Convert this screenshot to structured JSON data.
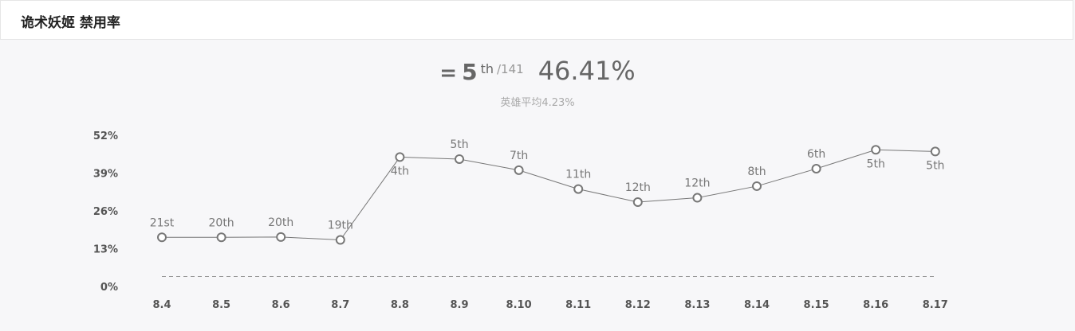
{
  "header": {
    "title": "诡术妖姬 禁用率"
  },
  "summary": {
    "prefix": "=",
    "rank": "5",
    "rank_suffix": "th",
    "rank_total": "/141",
    "rate": "46.41%",
    "average_label": "英雄平均4.23%"
  },
  "chart_data": {
    "type": "line",
    "categories": [
      "8.4",
      "8.5",
      "8.6",
      "8.7",
      "8.8",
      "8.9",
      "8.10",
      "8.11",
      "8.12",
      "8.13",
      "8.14",
      "8.15",
      "8.16",
      "8.17"
    ],
    "series": [
      {
        "values": [
          16.9,
          16.9,
          17.0,
          16.0,
          44.5,
          43.8,
          40.0,
          33.5,
          29.0,
          30.5,
          34.5,
          40.5,
          47.0,
          46.41
        ],
        "labels": [
          "21st",
          "20th",
          "20th",
          "19th",
          "4th",
          "5th",
          "7th",
          "11th",
          "12th",
          "12th",
          "8th",
          "6th",
          "5th",
          "5th"
        ],
        "label_positions": [
          "above",
          "above",
          "above",
          "above",
          "below",
          "above",
          "above",
          "above",
          "above",
          "above",
          "above",
          "above",
          "below",
          "below"
        ]
      }
    ],
    "average_line": 4.23,
    "yticks": [
      "0%",
      "13%",
      "26%",
      "39%",
      "52%"
    ],
    "ytick_values": [
      0,
      13,
      26,
      39,
      52
    ],
    "ylim": [
      0,
      52
    ],
    "line_color": "#777777",
    "average_line_color": "#999999"
  }
}
